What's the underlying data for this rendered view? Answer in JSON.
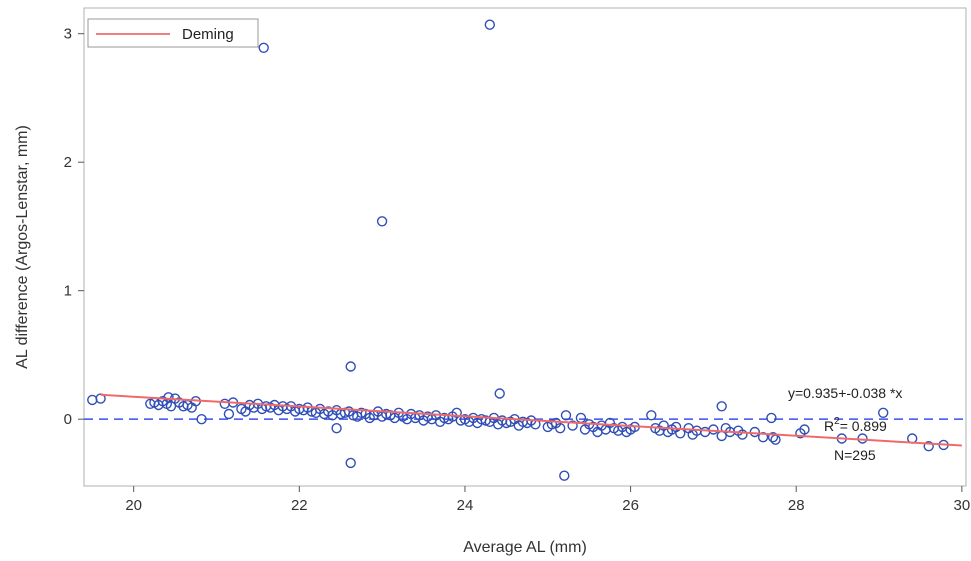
{
  "chart_data": {
    "type": "scatter",
    "xlabel": "Average AL (mm)",
    "ylabel": "AL difference (Argos-Lenstar, mm)",
    "xlim": [
      19.4,
      30.05
    ],
    "ylim": [
      -0.52,
      3.2
    ],
    "xticks": [
      20,
      22,
      24,
      26,
      28,
      30
    ],
    "yticks": [
      0,
      1,
      2,
      3
    ],
    "grid": false,
    "legend": {
      "position": "top-left",
      "entries": [
        {
          "label": "Deming",
          "color": "#f08080",
          "style": "solid-line"
        }
      ]
    },
    "colors": {
      "points": "#2f4fb5",
      "fit_line": "#f06a6a",
      "zero_line": "#3b4ff0",
      "frame": "#b0b0b0"
    },
    "series": [
      {
        "name": "Deming",
        "kind": "line",
        "x": [
          19.6,
          30.0
        ],
        "y": [
          0.19,
          -0.205
        ]
      },
      {
        "kind": "reference-line",
        "style": "dashed",
        "x": [
          19.4,
          30.05
        ],
        "y": [
          0,
          0
        ]
      },
      {
        "kind": "points",
        "x": [
          19.5,
          19.6,
          20.2,
          20.25,
          20.3,
          20.35,
          20.4,
          20.42,
          20.45,
          20.5,
          20.55,
          20.6,
          20.65,
          20.7,
          20.75,
          20.82,
          21.1,
          21.15,
          21.2,
          21.3,
          21.35,
          21.4,
          21.45,
          21.5,
          21.55,
          21.6,
          21.65,
          21.7,
          21.75,
          21.8,
          21.85,
          21.9,
          21.95,
          22.0,
          22.05,
          22.1,
          22.15,
          22.2,
          22.25,
          22.3,
          22.35,
          22.4,
          22.45,
          22.5,
          22.55,
          22.6,
          22.65,
          22.7,
          22.75,
          22.8,
          22.85,
          22.9,
          22.95,
          23.0,
          23.05,
          23.1,
          23.15,
          23.2,
          23.25,
          23.3,
          23.35,
          23.4,
          23.45,
          23.5,
          23.55,
          23.6,
          23.65,
          23.7,
          23.75,
          23.8,
          23.85,
          23.9,
          23.95,
          24.0,
          24.05,
          24.1,
          24.15,
          24.2,
          24.25,
          24.3,
          24.35,
          24.4,
          24.45,
          24.5,
          24.55,
          24.6,
          24.65,
          24.7,
          24.75,
          24.8,
          24.85,
          25.0,
          25.05,
          25.1,
          25.15,
          25.22,
          25.3,
          25.4,
          25.45,
          25.5,
          25.55,
          25.6,
          25.65,
          25.7,
          25.75,
          25.8,
          25.85,
          25.9,
          25.95,
          26.0,
          26.05,
          26.25,
          26.3,
          26.35,
          26.4,
          26.45,
          26.5,
          26.55,
          26.6,
          26.7,
          26.75,
          26.8,
          26.9,
          27.0,
          27.1,
          27.15,
          27.2,
          27.3,
          27.35,
          27.5,
          27.6,
          27.7,
          27.75,
          28.05,
          28.1,
          28.55,
          28.8,
          29.05,
          29.4,
          29.6,
          29.78,
          21.57,
          24.3,
          23.0,
          22.62,
          22.62,
          24.42,
          25.2,
          27.1,
          27.72,
          22.45
        ],
        "y": [
          0.15,
          0.16,
          0.12,
          0.13,
          0.11,
          0.14,
          0.12,
          0.17,
          0.1,
          0.16,
          0.13,
          0.1,
          0.11,
          0.09,
          0.14,
          0.0,
          0.12,
          0.04,
          0.13,
          0.08,
          0.06,
          0.11,
          0.09,
          0.12,
          0.08,
          0.1,
          0.09,
          0.11,
          0.07,
          0.1,
          0.08,
          0.1,
          0.06,
          0.08,
          0.07,
          0.09,
          0.06,
          0.05,
          0.08,
          0.04,
          0.06,
          0.03,
          0.07,
          0.04,
          0.05,
          0.06,
          0.03,
          0.02,
          0.05,
          0.04,
          0.01,
          0.03,
          0.06,
          0.02,
          0.04,
          0.03,
          0.01,
          0.05,
          0.02,
          0.0,
          0.04,
          0.01,
          0.03,
          -0.01,
          0.02,
          0.0,
          0.03,
          -0.02,
          0.01,
          0.0,
          0.02,
          0.05,
          -0.01,
          0.0,
          -0.02,
          0.01,
          -0.03,
          0.0,
          -0.01,
          -0.02,
          0.01,
          -0.04,
          -0.01,
          -0.03,
          -0.02,
          0.0,
          -0.05,
          -0.02,
          -0.03,
          -0.01,
          -0.04,
          -0.06,
          -0.04,
          -0.03,
          -0.07,
          0.03,
          -0.05,
          0.01,
          -0.08,
          -0.04,
          -0.06,
          -0.1,
          -0.05,
          -0.08,
          -0.03,
          -0.07,
          -0.09,
          -0.06,
          -0.1,
          -0.08,
          -0.06,
          0.03,
          -0.07,
          -0.09,
          -0.05,
          -0.1,
          -0.08,
          -0.06,
          -0.11,
          -0.07,
          -0.12,
          -0.09,
          -0.1,
          -0.08,
          -0.13,
          -0.07,
          -0.1,
          -0.09,
          -0.12,
          -0.1,
          -0.14,
          0.01,
          -0.16,
          -0.11,
          -0.08,
          -0.15,
          -0.15,
          0.05,
          -0.15,
          -0.21,
          -0.2,
          2.89,
          3.07,
          1.54,
          0.41,
          -0.34,
          0.2,
          -0.44,
          0.1,
          -0.14,
          -0.07
        ]
      }
    ],
    "annotations": {
      "equation": "y=0.935+-0.038 *x",
      "r_squared_prefix": "R",
      "r_squared_sup": "2",
      "r_squared_suffix": "= 0.899",
      "n": "N=295"
    }
  }
}
